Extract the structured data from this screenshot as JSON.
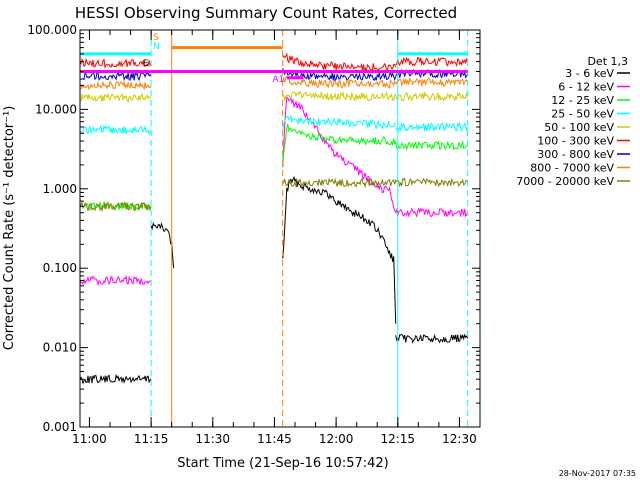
{
  "chart_data": {
    "type": "line",
    "title": "HESSI Observing Summary Count Rates, Corrected",
    "ylabel": "Corrected Count Rate (s⁻¹ detector⁻¹)",
    "xlabel": "Start Time (21-Sep-16 10:57:42)",
    "footer": "28-Nov-2017 07:35",
    "y_scale": "log",
    "ylim": [
      0.001,
      100
    ],
    "xlim": [
      "10:57:42",
      "12:35:00"
    ],
    "y_ticks": [
      "0.001",
      "0.010",
      "0.100",
      "1.000",
      "10.000",
      "100.000"
    ],
    "x_ticks": [
      "11:00",
      "11:15",
      "11:30",
      "11:45",
      "12:00",
      "12:15",
      "12:30"
    ],
    "legend_title": "Det 1,3",
    "legend_position": "right",
    "series": [
      {
        "name": "3 - 6 keV",
        "color": "#000000",
        "segments": [
          {
            "x": [
              "10:57:42",
              "11:15:00"
            ],
            "y": [
              0.004,
              0.004
            ]
          },
          {
            "x": [
              "11:15:00",
              "11:17:00",
              "11:19:00",
              "11:20:00",
              "11:20:30"
            ],
            "y": [
              0.35,
              0.33,
              0.3,
              0.2,
              0.1
            ]
          },
          {
            "x": [
              "11:47:00",
              "11:48:00",
              "11:49:00",
              "11:51:00",
              "11:54:00",
              "11:57:00",
              "12:00:00",
              "12:03:00",
              "12:06:00",
              "12:09:00",
              "12:11:00",
              "12:12:00",
              "12:13:00",
              "12:14:00",
              "12:14:30"
            ],
            "y": [
              0.12,
              0.95,
              1.3,
              1.15,
              1.0,
              0.9,
              0.7,
              0.55,
              0.45,
              0.35,
              0.25,
              0.2,
              0.15,
              0.13,
              0.02
            ]
          },
          {
            "x": [
              "12:14:30",
              "12:32:00"
            ],
            "y": [
              0.013,
              0.013
            ]
          }
        ]
      },
      {
        "name": "6 - 12 keV",
        "color": "#ff00ff",
        "segments": [
          {
            "x": [
              "10:57:42",
              "11:15:00"
            ],
            "y": [
              0.07,
              0.07
            ]
          },
          {
            "x": [
              "11:47:00",
              "11:48:00",
              "11:49:00",
              "11:51:00",
              "11:53:00",
              "11:56:00",
              "11:59:00",
              "12:02:00",
              "12:05:00",
              "12:08:00",
              "12:11:00",
              "12:13:00",
              "12:14:30"
            ],
            "y": [
              2.0,
              16,
              13,
              11,
              8,
              5,
              3,
              2.2,
              1.7,
              1.3,
              1.0,
              1.0,
              0.5
            ]
          },
          {
            "x": [
              "12:14:30",
              "12:32:00"
            ],
            "y": [
              0.5,
              0.5
            ]
          }
        ]
      },
      {
        "name": "12 - 25 keV",
        "color": "#00ff00",
        "segments": [
          {
            "x": [
              "10:57:42",
              "11:15:00"
            ],
            "y": [
              0.6,
              0.6
            ]
          },
          {
            "x": [
              "11:47:00",
              "11:48:00",
              "11:50:00",
              "11:55:00",
              "12:00:00",
              "12:05:00",
              "12:10:00",
              "12:14:30"
            ],
            "y": [
              2.0,
              6.0,
              5.0,
              4.5,
              4.0,
              4.0,
              4.0,
              4.0
            ]
          },
          {
            "x": [
              "12:14:30",
              "12:32:00"
            ],
            "y": [
              3.5,
              3.5
            ]
          }
        ]
      },
      {
        "name": "25 - 50 keV",
        "color": "#00ffff",
        "segments": [
          {
            "x": [
              "10:57:42",
              "11:15:00"
            ],
            "y": [
              5.5,
              5.5
            ]
          },
          {
            "x": [
              "11:47:00",
              "11:48:00",
              "11:50:00",
              "11:55:00",
              "12:00:00",
              "12:05:00",
              "12:10:00",
              "12:14:30"
            ],
            "y": [
              6,
              8,
              7.5,
              7,
              7,
              6.5,
              6.5,
              6.5
            ]
          },
          {
            "x": [
              "12:14:30",
              "12:32:00"
            ],
            "y": [
              6,
              6
            ]
          }
        ]
      },
      {
        "name": "50 - 100 keV",
        "color": "#cccc00",
        "segments": [
          {
            "x": [
              "10:57:42",
              "11:15:00"
            ],
            "y": [
              14,
              14
            ]
          },
          {
            "x": [
              "11:47:00",
              "11:48:00",
              "11:50:00",
              "11:55:00",
              "12:00:00",
              "12:05:00",
              "12:10:00",
              "12:14:30"
            ],
            "y": [
              14,
              15,
              15,
              15,
              14.5,
              14.5,
              14.5,
              14.5
            ]
          },
          {
            "x": [
              "12:14:30",
              "12:32:00"
            ],
            "y": [
              14.5,
              14.5
            ]
          }
        ]
      },
      {
        "name": "100 - 300 keV",
        "color": "#ff0000",
        "segments": [
          {
            "x": [
              "10:57:42",
              "11:15:00"
            ],
            "y": [
              38,
              38
            ]
          },
          {
            "x": [
              "11:47:00",
              "11:50:00",
              "11:55:00",
              "12:00:00",
              "12:05:00",
              "12:10:00",
              "12:14:30"
            ],
            "y": [
              48,
              40,
              36,
              35,
              34,
              34,
              34
            ]
          },
          {
            "x": [
              "12:14:30",
              "12:32:00"
            ],
            "y": [
              40,
              40
            ]
          }
        ]
      },
      {
        "name": "300 - 800 keV",
        "color": "#0000cc",
        "segments": [
          {
            "x": [
              "10:57:42",
              "11:15:00"
            ],
            "y": [
              26,
              26
            ]
          },
          {
            "x": [
              "11:47:00",
              "11:50:00",
              "11:55:00",
              "12:00:00",
              "12:05:00",
              "12:10:00",
              "12:14:30"
            ],
            "y": [
              30,
              27,
              26,
              26,
              26,
              26,
              26
            ]
          },
          {
            "x": [
              "12:14:30",
              "12:32:00"
            ],
            "y": [
              28,
              28
            ]
          }
        ]
      },
      {
        "name": "800 - 7000 keV",
        "color": "#ff8000",
        "segments": [
          {
            "x": [
              "10:57:42",
              "11:15:00"
            ],
            "y": [
              20,
              20
            ]
          },
          {
            "x": [
              "11:47:00",
              "11:50:00",
              "11:55:00",
              "12:00:00",
              "12:05:00",
              "12:10:00",
              "12:14:30"
            ],
            "y": [
              24,
              22,
              21,
              21,
              21,
              21,
              21
            ]
          },
          {
            "x": [
              "12:14:30",
              "12:32:00"
            ],
            "y": [
              22,
              22
            ]
          }
        ]
      },
      {
        "name": "7000 - 20000 keV",
        "color": "#808000",
        "segments": [
          {
            "x": [
              "10:57:42",
              "11:15:00"
            ],
            "y": [
              0.6,
              0.6
            ]
          },
          {
            "x": [
              "11:47:00",
              "11:50:00",
              "12:00:00",
              "12:10:00",
              "12:14:30",
              "12:32:00"
            ],
            "y": [
              1.2,
              1.2,
              1.2,
              1.2,
              1.2,
              1.2
            ]
          }
        ]
      }
    ],
    "vertical_lines": [
      {
        "x": "10:57:42",
        "color": "#00ffff",
        "style": "solid"
      },
      {
        "x": "11:15:00",
        "color": "#00ffff",
        "style": "dashed"
      },
      {
        "x": "11:20:00",
        "color": "#ff8000",
        "style": "solid"
      },
      {
        "x": "11:47:00",
        "color": "#ff8000",
        "style": "dashed"
      },
      {
        "x": "12:15:00",
        "color": "#00ffff",
        "style": "solid"
      },
      {
        "x": "12:32:00",
        "color": "#00ffff",
        "style": "dashed"
      }
    ],
    "horizontal_bars": [
      {
        "x": [
          "10:57:42",
          "11:15:00"
        ],
        "y": 50,
        "color": "#00ffff"
      },
      {
        "x": [
          "11:20:00",
          "11:47:00"
        ],
        "y": 60,
        "color": "#ff8000"
      },
      {
        "x": [
          "10:57:42",
          "12:32:00"
        ],
        "y": 30,
        "color": "#ff00ff"
      },
      {
        "x": [
          "11:48:00",
          "11:52:00"
        ],
        "y": 25,
        "color": "#ff00ff"
      },
      {
        "x": [
          "12:15:00",
          "12:32:00"
        ],
        "y": 50,
        "color": "#00ffff"
      }
    ],
    "annotations": [
      {
        "text": "S",
        "x": "11:15:30",
        "y": 75,
        "color": "#ff8000"
      },
      {
        "text": "N",
        "x": "11:15:30",
        "y": 58,
        "color": "#00ffff"
      },
      {
        "text": "E",
        "x": "11:13:00",
        "y": 35,
        "color": "#000000"
      },
      {
        "text": "A1",
        "x": "11:44:30",
        "y": 22,
        "color": "#ff00ff"
      }
    ]
  }
}
